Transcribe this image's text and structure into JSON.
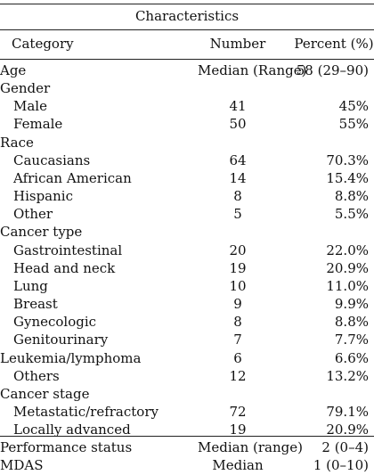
{
  "caption": "Characteristics",
  "headers": {
    "category": "Category",
    "number": "Number",
    "percent": "Percent (%)"
  },
  "rows": [
    {
      "category": "Age",
      "number": "Median (Range)",
      "percent": "58 (29–90)",
      "indent": false
    },
    {
      "category": "Gender",
      "number": "",
      "percent": "",
      "indent": false
    },
    {
      "category": "Male",
      "number": "41",
      "percent": "45%",
      "indent": true
    },
    {
      "category": "Female",
      "number": "50",
      "percent": "55%",
      "indent": true
    },
    {
      "category": "Race",
      "number": "",
      "percent": "",
      "indent": false
    },
    {
      "category": "Caucasians",
      "number": "64",
      "percent": "70.3%",
      "indent": true
    },
    {
      "category": "African American",
      "number": "14",
      "percent": "15.4%",
      "indent": true
    },
    {
      "category": "Hispanic",
      "number": "8",
      "percent": "8.8%",
      "indent": true
    },
    {
      "category": "Other",
      "number": "5",
      "percent": "5.5%",
      "indent": true
    },
    {
      "category": "Cancer type",
      "number": "",
      "percent": "",
      "indent": false
    },
    {
      "category": "Gastrointestinal",
      "number": "20",
      "percent": "22.0%",
      "indent": true
    },
    {
      "category": "Head and neck",
      "number": "19",
      "percent": "20.9%",
      "indent": true
    },
    {
      "category": "Lung",
      "number": "10",
      "percent": "11.0%",
      "indent": true
    },
    {
      "category": "Breast",
      "number": "9",
      "percent": "9.9%",
      "indent": true
    },
    {
      "category": "Gynecologic",
      "number": "8",
      "percent": "8.8%",
      "indent": true
    },
    {
      "category": "Genitourinary",
      "number": "7",
      "percent": "7.7%",
      "indent": true
    },
    {
      "category": "Leukemia/lymphoma",
      "number": "6",
      "percent": "6.6%",
      "indent": false
    },
    {
      "category": "Others",
      "number": "12",
      "percent": "13.2%",
      "indent": true
    },
    {
      "category": "Cancer stage",
      "number": "",
      "percent": "",
      "indent": false
    },
    {
      "category": "Metastatic/refractory",
      "number": "72",
      "percent": "79.1%",
      "indent": true
    },
    {
      "category": "Locally advanced",
      "number": "19",
      "percent": "20.9%",
      "indent": true
    },
    {
      "category": "Performance status",
      "number": "Median (range)",
      "percent": "2 (0–4)",
      "indent": false
    },
    {
      "category": "MDAS",
      "number": "Median",
      "percent": "1 (0–10)",
      "indent": false
    }
  ]
}
